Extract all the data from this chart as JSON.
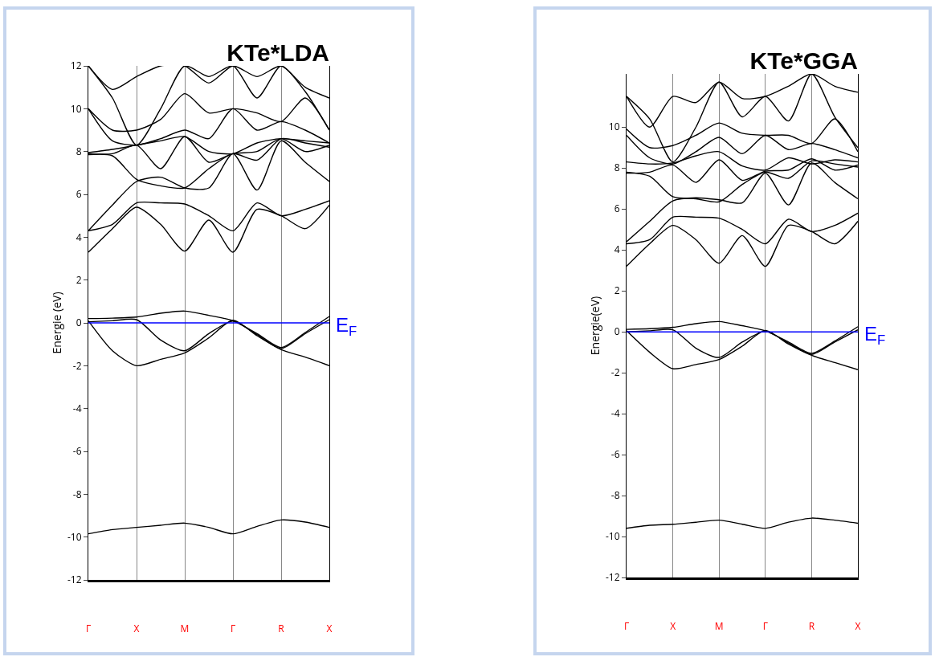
{
  "chart_data": [
    {
      "type": "line",
      "title": "KTe*LDA",
      "ylabel": "Energie (eV)",
      "categories": [
        "Γ",
        null,
        "X",
        null,
        "M",
        null,
        "Γ",
        null,
        "R",
        null,
        "X"
      ],
      "ylim": [
        -12,
        12
      ],
      "yticks": [
        -12,
        -10,
        -8,
        -6,
        -4,
        -2,
        0,
        2,
        4,
        6,
        8,
        10,
        12
      ],
      "grid": "x",
      "ref_lines": [
        {
          "axis": "y",
          "value": 0,
          "label": "E$_{F}$",
          "color": "#0000ff"
        }
      ],
      "series": [
        {
          "color": "#000000",
          "values": [
            -9.85,
            -9.65,
            -9.55,
            -9.45,
            -9.35,
            -9.55,
            -9.85,
            -9.5,
            -9.2,
            -9.3,
            -9.55
          ]
        },
        {
          "color": "#000000",
          "values": [
            0.1,
            -1.3,
            -2.0,
            -1.7,
            -1.4,
            -0.7,
            0.12,
            -0.6,
            -1.25,
            -1.6,
            -2.0
          ]
        },
        {
          "color": "#000000",
          "values": [
            0.05,
            0.1,
            0.15,
            -0.8,
            -1.3,
            -0.5,
            0.08,
            -0.55,
            -1.2,
            -0.5,
            0.15
          ]
        },
        {
          "color": "#000000",
          "values": [
            0.2,
            0.22,
            0.27,
            0.45,
            0.55,
            0.35,
            0.1,
            -0.5,
            -1.15,
            -0.45,
            0.3
          ]
        },
        {
          "color": "#000000",
          "values": [
            3.3,
            4.4,
            5.4,
            4.6,
            3.35,
            4.8,
            3.3,
            5.3,
            5.0,
            4.4,
            5.5
          ]
        },
        {
          "color": "#000000",
          "values": [
            4.3,
            4.6,
            5.6,
            5.6,
            5.55,
            5.0,
            4.3,
            5.6,
            5.0,
            5.3,
            5.7
          ]
        },
        {
          "color": "#000000",
          "values": [
            4.3,
            5.5,
            6.6,
            6.8,
            6.3,
            6.3,
            7.9,
            6.2,
            8.5,
            7.5,
            6.6
          ]
        },
        {
          "color": "#000000",
          "values": [
            7.85,
            7.8,
            6.7,
            6.4,
            6.3,
            7.2,
            7.9,
            7.6,
            8.6,
            8.4,
            8.2
          ]
        },
        {
          "color": "#000000",
          "values": [
            7.9,
            7.9,
            8.3,
            7.2,
            8.7,
            7.5,
            7.9,
            8.0,
            8.6,
            8.0,
            8.3
          ]
        },
        {
          "color": "#000000",
          "values": [
            7.95,
            8.1,
            8.3,
            8.5,
            8.7,
            8.0,
            7.9,
            8.4,
            8.6,
            8.5,
            8.4
          ]
        },
        {
          "color": "#000000",
          "values": [
            10.0,
            8.5,
            8.3,
            8.6,
            9.0,
            8.6,
            10.0,
            9.0,
            9.4,
            9.0,
            8.4
          ]
        },
        {
          "color": "#000000",
          "values": [
            10.0,
            9.0,
            9.0,
            9.5,
            10.7,
            9.8,
            10.0,
            9.8,
            9.4,
            10.5,
            9.0
          ]
        },
        {
          "color": "#000000",
          "values": [
            12.0,
            10.5,
            8.3,
            10.0,
            12.0,
            11.5,
            12.0,
            10.5,
            12.0,
            10.8,
            9.0
          ]
        },
        {
          "color": "#000000",
          "values": [
            12.0,
            10.9,
            11.5,
            12.0,
            12.0,
            11.2,
            12.0,
            11.5,
            12.0,
            11.0,
            10.5
          ]
        }
      ]
    },
    {
      "type": "line",
      "title": "KTe*GGA",
      "ylabel": "Energie(eV)",
      "categories": [
        "Γ",
        null,
        "X",
        null,
        "M",
        null,
        "Γ",
        null,
        "R",
        null,
        "X"
      ],
      "ylim": [
        -12,
        12.6
      ],
      "yticks": [
        -12,
        -10,
        -8,
        -6,
        -4,
        -2,
        0,
        2,
        4,
        6,
        8,
        10
      ],
      "grid": "x",
      "ref_lines": [
        {
          "axis": "y",
          "value": 0,
          "label": "E$_{F}$",
          "color": "#0000ff"
        }
      ],
      "series": [
        {
          "color": "#000000",
          "values": [
            -9.6,
            -9.45,
            -9.4,
            -9.3,
            -9.2,
            -9.4,
            -9.6,
            -9.3,
            -9.1,
            -9.2,
            -9.35
          ]
        },
        {
          "color": "#000000",
          "values": [
            0.05,
            -1.0,
            -1.8,
            -1.6,
            -1.35,
            -0.7,
            0.07,
            -0.6,
            -1.15,
            -1.5,
            -1.85
          ]
        },
        {
          "color": "#000000",
          "values": [
            0.0,
            0.05,
            0.1,
            -0.8,
            -1.25,
            -0.5,
            0.03,
            -0.55,
            -1.1,
            -0.5,
            0.1
          ]
        },
        {
          "color": "#000000",
          "values": [
            0.12,
            0.15,
            0.22,
            0.4,
            0.5,
            0.3,
            0.05,
            -0.5,
            -1.05,
            -0.45,
            0.25
          ]
        },
        {
          "color": "#000000",
          "values": [
            3.2,
            4.3,
            5.2,
            4.5,
            3.35,
            4.7,
            3.2,
            5.2,
            4.9,
            4.3,
            5.4
          ]
        },
        {
          "color": "#000000",
          "values": [
            4.3,
            4.5,
            5.6,
            5.6,
            5.55,
            5.0,
            4.3,
            5.5,
            4.9,
            5.2,
            5.8
          ]
        },
        {
          "color": "#000000",
          "values": [
            4.4,
            5.4,
            6.4,
            6.55,
            6.45,
            6.3,
            7.75,
            6.2,
            8.25,
            7.3,
            6.5
          ]
        },
        {
          "color": "#000000",
          "values": [
            7.8,
            7.6,
            6.6,
            6.5,
            6.35,
            7.2,
            7.8,
            7.5,
            8.35,
            8.2,
            8.05
          ]
        },
        {
          "color": "#000000",
          "values": [
            7.75,
            7.8,
            8.15,
            7.3,
            8.4,
            7.4,
            7.85,
            7.9,
            8.45,
            7.9,
            8.15
          ]
        },
        {
          "color": "#000000",
          "values": [
            8.3,
            8.2,
            8.25,
            8.6,
            8.8,
            8.1,
            7.9,
            8.5,
            8.2,
            8.4,
            8.3
          ]
        },
        {
          "color": "#000000",
          "values": [
            9.6,
            8.5,
            8.2,
            8.8,
            9.5,
            8.7,
            9.6,
            8.9,
            9.2,
            8.9,
            8.5
          ]
        },
        {
          "color": "#000000",
          "values": [
            9.9,
            9.0,
            9.1,
            9.6,
            10.2,
            9.7,
            9.6,
            9.6,
            9.2,
            10.4,
            8.8
          ]
        },
        {
          "color": "#000000",
          "values": [
            11.5,
            10.4,
            8.3,
            10.0,
            12.2,
            10.5,
            11.5,
            10.3,
            12.6,
            10.5,
            9.0
          ]
        },
        {
          "color": "#000000",
          "values": [
            11.5,
            10.0,
            11.5,
            11.2,
            12.2,
            11.4,
            11.5,
            12.0,
            12.6,
            12.0,
            11.7
          ]
        }
      ]
    }
  ]
}
